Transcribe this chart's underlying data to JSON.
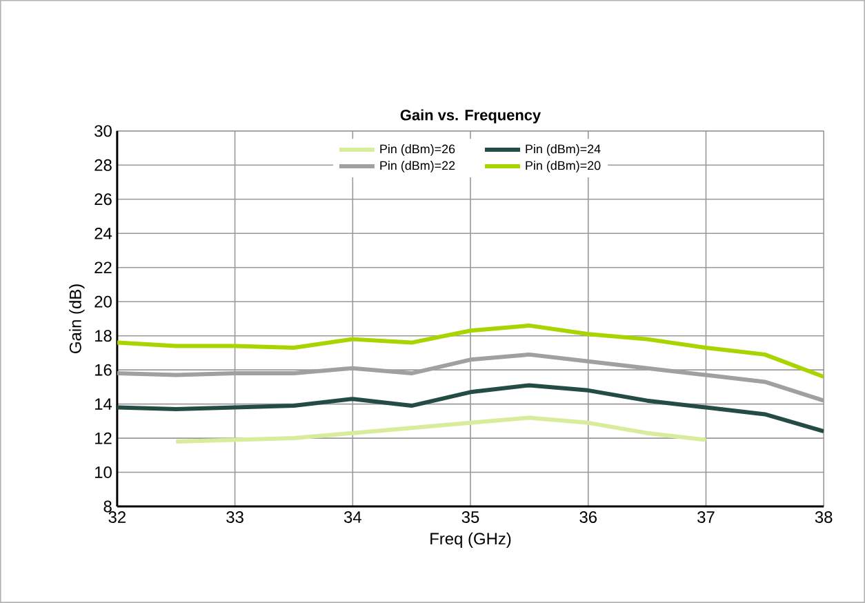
{
  "chart_data": {
    "type": "line",
    "title": "Gain vs. Frequency",
    "xlabel": "Freq (GHz)",
    "ylabel": "Gain (dB)",
    "x": [
      32,
      32.5,
      33,
      33.5,
      34,
      34.5,
      35,
      35.5,
      36,
      36.5,
      37,
      37.5,
      38
    ],
    "xlim": [
      32,
      38
    ],
    "xticks": [
      32,
      33,
      34,
      35,
      36,
      37,
      38
    ],
    "ylim": [
      8,
      30
    ],
    "yticks": [
      8,
      10,
      12,
      14,
      16,
      18,
      20,
      22,
      24,
      26,
      28,
      30
    ],
    "grid": true,
    "legend": "top",
    "marker": "none",
    "line_style": "solid",
    "series": [
      {
        "name": "Pin (dBm)=26",
        "color": "#d9ec9c",
        "values": [
          null,
          11.8,
          11.9,
          12.0,
          12.3,
          12.6,
          12.9,
          13.2,
          12.9,
          12.3,
          11.9,
          null,
          null
        ]
      },
      {
        "name": "Pin (dBm)=24",
        "color": "#254b45",
        "values": [
          13.8,
          13.7,
          13.8,
          13.9,
          14.3,
          13.9,
          14.7,
          15.1,
          14.8,
          14.2,
          13.8,
          13.4,
          12.4
        ]
      },
      {
        "name": "Pin (dBm)=22",
        "color": "#a0a0a0",
        "values": [
          15.8,
          15.7,
          15.8,
          15.8,
          16.1,
          15.8,
          16.6,
          16.9,
          16.5,
          16.1,
          15.7,
          15.3,
          14.2
        ]
      },
      {
        "name": "Pin (dBm)=20",
        "color": "#a8d400",
        "values": [
          17.6,
          17.4,
          17.4,
          17.3,
          17.8,
          17.6,
          18.3,
          18.6,
          18.1,
          17.8,
          17.3,
          16.9,
          15.6
        ]
      }
    ]
  }
}
